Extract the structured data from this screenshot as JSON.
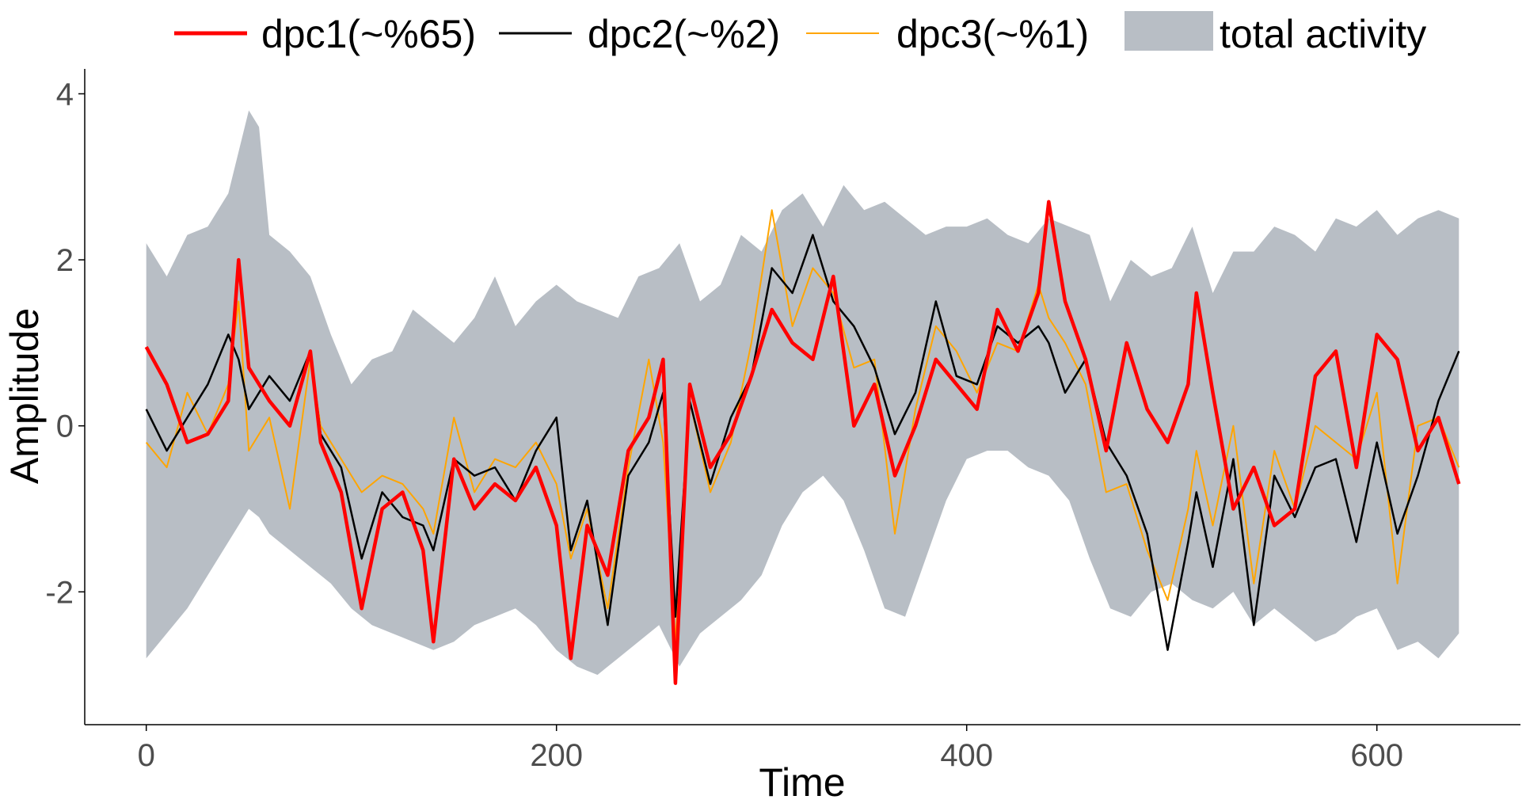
{
  "chart_data": {
    "type": "line",
    "xlabel": "Time",
    "ylabel": "Amplitude",
    "xlim": [
      -30,
      670
    ],
    "ylim": [
      -3.6,
      4.3
    ],
    "xticks": [
      0,
      200,
      400,
      600
    ],
    "xtick_labels": [
      "0",
      "200",
      "400",
      "600"
    ],
    "yticks": [
      -2,
      0,
      2,
      4
    ],
    "ytick_labels": [
      "-2",
      "0",
      "2",
      "4"
    ],
    "legend_position": "top",
    "colors": {
      "dpc1": "#ff0000",
      "dpc2": "#000000",
      "dpc3": "#ffa500",
      "band": "#b8bec5"
    },
    "series": [
      {
        "name": "dpc1(~%65)",
        "key": "dpc1",
        "x": [
          0,
          10,
          20,
          30,
          40,
          45,
          50,
          60,
          70,
          80,
          85,
          95,
          105,
          115,
          125,
          135,
          140,
          150,
          160,
          170,
          180,
          190,
          200,
          207,
          215,
          225,
          235,
          245,
          252,
          258,
          265,
          275,
          285,
          295,
          305,
          315,
          325,
          335,
          345,
          355,
          365,
          375,
          385,
          395,
          405,
          415,
          425,
          435,
          440,
          448,
          458,
          468,
          478,
          488,
          498,
          508,
          512,
          520,
          530,
          540,
          550,
          560,
          570,
          580,
          590,
          600,
          610,
          620,
          630,
          640
        ],
        "values": [
          0.95,
          0.5,
          -0.2,
          -0.1,
          0.3,
          2.0,
          0.7,
          0.3,
          0.0,
          0.9,
          -0.2,
          -0.8,
          -2.2,
          -1.0,
          -0.8,
          -1.5,
          -2.6,
          -0.4,
          -1.0,
          -0.7,
          -0.9,
          -0.5,
          -1.2,
          -2.8,
          -1.2,
          -1.8,
          -0.3,
          0.1,
          0.8,
          -3.1,
          0.5,
          -0.5,
          -0.1,
          0.6,
          1.4,
          1.0,
          0.8,
          1.8,
          0.0,
          0.5,
          -0.6,
          0.0,
          0.8,
          0.5,
          0.2,
          1.4,
          0.9,
          1.6,
          2.7,
          1.5,
          0.8,
          -0.3,
          1.0,
          0.2,
          -0.2,
          0.5,
          1.6,
          0.4,
          -1.0,
          -0.5,
          -1.2,
          -1.0,
          0.6,
          0.9,
          -0.5,
          1.1,
          0.8,
          -0.3,
          0.1,
          -0.7
        ]
      },
      {
        "name": "dpc2(~%2)",
        "key": "dpc2",
        "x": [
          0,
          10,
          20,
          30,
          40,
          45,
          50,
          60,
          70,
          80,
          85,
          95,
          105,
          115,
          125,
          135,
          140,
          150,
          160,
          170,
          180,
          190,
          200,
          207,
          215,
          225,
          235,
          245,
          252,
          258,
          265,
          275,
          285,
          295,
          305,
          315,
          325,
          335,
          345,
          355,
          365,
          375,
          385,
          395,
          405,
          415,
          425,
          435,
          440,
          448,
          458,
          468,
          478,
          488,
          498,
          508,
          512,
          520,
          530,
          540,
          550,
          560,
          570,
          580,
          590,
          600,
          610,
          620,
          630,
          640
        ],
        "values": [
          0.2,
          -0.3,
          0.1,
          0.5,
          1.1,
          0.8,
          0.2,
          0.6,
          0.3,
          0.9,
          -0.1,
          -0.5,
          -1.6,
          -0.8,
          -1.1,
          -1.2,
          -1.5,
          -0.4,
          -0.6,
          -0.5,
          -0.9,
          -0.3,
          0.1,
          -1.5,
          -0.9,
          -2.4,
          -0.6,
          -0.2,
          0.4,
          -2.3,
          0.3,
          -0.7,
          0.1,
          0.6,
          1.9,
          1.6,
          2.3,
          1.5,
          1.2,
          0.7,
          -0.1,
          0.4,
          1.5,
          0.6,
          0.5,
          1.2,
          1.0,
          1.2,
          1.0,
          0.4,
          0.8,
          -0.2,
          -0.6,
          -1.3,
          -2.7,
          -1.4,
          -0.8,
          -1.7,
          -0.4,
          -2.4,
          -0.6,
          -1.1,
          -0.5,
          -0.4,
          -1.4,
          -0.2,
          -1.3,
          -0.6,
          0.3,
          0.9
        ]
      },
      {
        "name": "dpc3(~%1)",
        "key": "dpc3",
        "x": [
          0,
          10,
          20,
          30,
          40,
          45,
          50,
          60,
          70,
          80,
          85,
          95,
          105,
          115,
          125,
          135,
          140,
          150,
          160,
          170,
          180,
          190,
          200,
          207,
          215,
          225,
          235,
          245,
          252,
          258,
          265,
          275,
          285,
          295,
          305,
          315,
          325,
          335,
          345,
          355,
          365,
          375,
          385,
          395,
          405,
          415,
          425,
          435,
          440,
          448,
          458,
          468,
          478,
          488,
          498,
          508,
          512,
          520,
          530,
          540,
          550,
          560,
          570,
          580,
          590,
          600,
          610,
          620,
          630,
          640
        ],
        "values": [
          -0.2,
          -0.5,
          0.4,
          -0.1,
          0.5,
          1.5,
          -0.3,
          0.1,
          -1.0,
          0.8,
          0.0,
          -0.4,
          -0.8,
          -0.6,
          -0.7,
          -1.0,
          -1.3,
          0.1,
          -0.8,
          -0.4,
          -0.5,
          -0.2,
          -0.7,
          -1.6,
          -1.0,
          -2.2,
          -0.5,
          0.8,
          -0.2,
          -2.6,
          0.3,
          -0.8,
          -0.2,
          1.0,
          2.6,
          1.2,
          1.9,
          1.6,
          0.7,
          0.8,
          -1.3,
          0.2,
          1.2,
          0.9,
          0.4,
          1.0,
          0.9,
          1.7,
          1.3,
          1.0,
          0.5,
          -0.8,
          -0.7,
          -1.5,
          -2.1,
          -1.0,
          -0.3,
          -1.2,
          0.0,
          -1.9,
          -0.3,
          -1.0,
          0.0,
          -0.2,
          -0.4,
          0.4,
          -1.9,
          0.0,
          0.1,
          -0.5
        ]
      },
      {
        "name": "total activity",
        "key": "band",
        "x": [
          0,
          10,
          20,
          30,
          40,
          50,
          55,
          60,
          70,
          80,
          90,
          100,
          110,
          120,
          130,
          140,
          150,
          160,
          170,
          180,
          190,
          200,
          210,
          220,
          230,
          240,
          250,
          260,
          270,
          280,
          290,
          300,
          310,
          320,
          330,
          340,
          350,
          360,
          370,
          380,
          390,
          400,
          410,
          420,
          430,
          440,
          450,
          460,
          470,
          480,
          490,
          500,
          510,
          520,
          530,
          540,
          550,
          560,
          570,
          580,
          590,
          600,
          610,
          620,
          630,
          640
        ],
        "lower": [
          -2.8,
          -2.5,
          -2.2,
          -1.8,
          -1.4,
          -1.0,
          -1.1,
          -1.3,
          -1.5,
          -1.7,
          -1.9,
          -2.2,
          -2.4,
          -2.5,
          -2.6,
          -2.7,
          -2.6,
          -2.4,
          -2.3,
          -2.2,
          -2.4,
          -2.7,
          -2.9,
          -3.0,
          -2.8,
          -2.6,
          -2.4,
          -2.9,
          -2.5,
          -2.3,
          -2.1,
          -1.8,
          -1.2,
          -0.8,
          -0.6,
          -0.9,
          -1.5,
          -2.2,
          -2.3,
          -1.6,
          -0.9,
          -0.4,
          -0.3,
          -0.3,
          -0.5,
          -0.6,
          -0.9,
          -1.6,
          -2.2,
          -2.3,
          -2.0,
          -1.9,
          -2.1,
          -2.2,
          -2.0,
          -2.4,
          -2.2,
          -2.4,
          -2.6,
          -2.5,
          -2.3,
          -2.2,
          -2.7,
          -2.6,
          -2.8,
          -2.5
        ],
        "upper": [
          2.2,
          1.8,
          2.3,
          2.4,
          2.8,
          3.8,
          3.6,
          2.3,
          2.1,
          1.8,
          1.1,
          0.5,
          0.8,
          0.9,
          1.4,
          1.2,
          1.0,
          1.3,
          1.8,
          1.2,
          1.5,
          1.7,
          1.5,
          1.4,
          1.3,
          1.8,
          1.9,
          2.2,
          1.5,
          1.7,
          2.3,
          2.1,
          2.6,
          2.8,
          2.4,
          2.9,
          2.6,
          2.7,
          2.5,
          2.3,
          2.4,
          2.4,
          2.5,
          2.3,
          2.2,
          2.5,
          2.4,
          2.3,
          1.5,
          2.0,
          1.8,
          1.9,
          2.4,
          1.6,
          2.1,
          2.1,
          2.4,
          2.3,
          2.1,
          2.5,
          2.4,
          2.6,
          2.3,
          2.5,
          2.6,
          2.5
        ]
      }
    ]
  }
}
